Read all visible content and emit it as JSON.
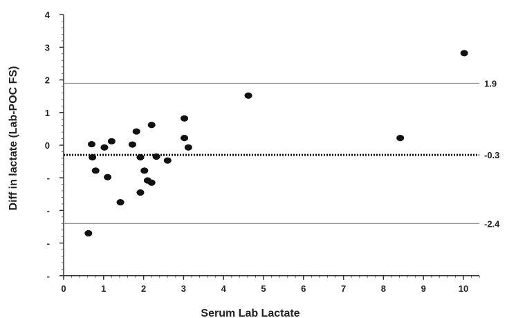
{
  "chart_data": {
    "type": "scatter",
    "title": "",
    "xlabel": "Serum Lab Lactate",
    "ylabel": "Diff in lactate (Lab-POC FS)",
    "xlim": [
      0,
      10.5
    ],
    "ylim": [
      -4,
      4
    ],
    "x_ticks": [
      "0",
      "1",
      "2",
      "3",
      "4",
      "5",
      "6",
      "7",
      "8",
      "9",
      "10"
    ],
    "y_ticks": [
      {
        "value": 4,
        "label": "4"
      },
      {
        "value": 3,
        "label": "3"
      },
      {
        "value": 2,
        "label": "2"
      },
      {
        "value": 1,
        "label": "1"
      },
      {
        "value": 0,
        "label": "0"
      },
      {
        "value": -1,
        "label": "-"
      },
      {
        "value": -2,
        "label": "-"
      },
      {
        "value": -3,
        "label": "-"
      },
      {
        "value": -4,
        "label": "-"
      }
    ],
    "grid": false,
    "reference_lines": [
      {
        "value": 1.9,
        "label": "1.9",
        "style": "solid"
      },
      {
        "value": -0.3,
        "label": "-0.3",
        "style": "dotted"
      },
      {
        "value": -2.4,
        "label": "-2.4",
        "style": "solid"
      }
    ],
    "points": [
      {
        "x": 0.62,
        "y": -2.7
      },
      {
        "x": 0.7,
        "y": 0.03
      },
      {
        "x": 0.72,
        "y": -0.37
      },
      {
        "x": 0.8,
        "y": -0.78
      },
      {
        "x": 1.02,
        "y": -0.07
      },
      {
        "x": 1.1,
        "y": -0.98
      },
      {
        "x": 1.2,
        "y": 0.12
      },
      {
        "x": 1.42,
        "y": -1.75
      },
      {
        "x": 1.72,
        "y": 0.02
      },
      {
        "x": 1.82,
        "y": 0.42
      },
      {
        "x": 1.92,
        "y": -0.37
      },
      {
        "x": 1.92,
        "y": -1.45
      },
      {
        "x": 2.02,
        "y": -0.78
      },
      {
        "x": 2.1,
        "y": -1.08
      },
      {
        "x": 2.2,
        "y": 0.62
      },
      {
        "x": 2.2,
        "y": -1.15
      },
      {
        "x": 2.32,
        "y": -0.35
      },
      {
        "x": 2.6,
        "y": -0.47
      },
      {
        "x": 3.02,
        "y": 0.82
      },
      {
        "x": 3.02,
        "y": 0.22
      },
      {
        "x": 3.12,
        "y": -0.07
      },
      {
        "x": 4.62,
        "y": 1.52
      },
      {
        "x": 8.42,
        "y": 0.22
      },
      {
        "x": 10.02,
        "y": 2.82
      }
    ],
    "colors": {
      "points": "#111111",
      "lines": "#555555",
      "axis": "#333333"
    }
  }
}
